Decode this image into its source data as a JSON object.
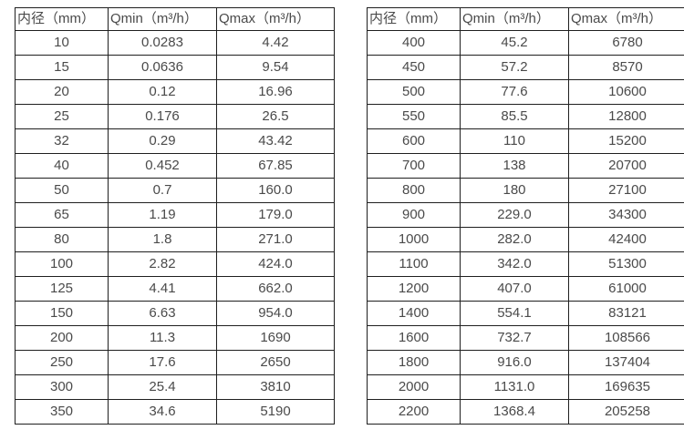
{
  "colors": {
    "background": "#ffffff",
    "table_border": "#1f1f1f",
    "text": "#4a4a4a"
  },
  "tables": [
    {
      "name": "flow-spec-small-diameters",
      "headers": [
        "内径（mm）",
        "Qmin（m³/h）",
        "Qmax（m³/h）"
      ],
      "rows": [
        [
          "10",
          "0.0283",
          "4.42"
        ],
        [
          "15",
          "0.0636",
          "9.54"
        ],
        [
          "20",
          "0.12",
          "16.96"
        ],
        [
          "25",
          "0.176",
          "26.5"
        ],
        [
          "32",
          "0.29",
          "43.42"
        ],
        [
          "40",
          "0.452",
          "67.85"
        ],
        [
          "50",
          "0.7",
          "160.0"
        ],
        [
          "65",
          "1.19",
          "179.0"
        ],
        [
          "80",
          "1.8",
          "271.0"
        ],
        [
          "100",
          "2.82",
          "424.0"
        ],
        [
          "125",
          "4.41",
          "662.0"
        ],
        [
          "150",
          "6.63",
          "954.0"
        ],
        [
          "200",
          "11.3",
          "1690"
        ],
        [
          "250",
          "17.6",
          "2650"
        ],
        [
          "300",
          "25.4",
          "3810"
        ],
        [
          "350",
          "34.6",
          "5190"
        ]
      ]
    },
    {
      "name": "flow-spec-large-diameters",
      "headers": [
        "内径（mm）",
        "Qmin（m³/h）",
        "Qmax（m³/h）"
      ],
      "rows": [
        [
          "400",
          "45.2",
          "6780"
        ],
        [
          "450",
          "57.2",
          "8570"
        ],
        [
          "500",
          "77.6",
          "10600"
        ],
        [
          "550",
          "85.5",
          "12800"
        ],
        [
          "600",
          "110",
          "15200"
        ],
        [
          "700",
          "138",
          "20700"
        ],
        [
          "800",
          "180",
          "27100"
        ],
        [
          "900",
          "229.0",
          "34300"
        ],
        [
          "1000",
          "282.0",
          "42400"
        ],
        [
          "1100",
          "342.0",
          "51300"
        ],
        [
          "1200",
          "407.0",
          "61000"
        ],
        [
          "1400",
          "554.1",
          "83121"
        ],
        [
          "1600",
          "732.7",
          "108566"
        ],
        [
          "1800",
          "916.0",
          "137404"
        ],
        [
          "2000",
          "1131.0",
          "169635"
        ],
        [
          "2200",
          "1368.4",
          "205258"
        ]
      ]
    }
  ]
}
